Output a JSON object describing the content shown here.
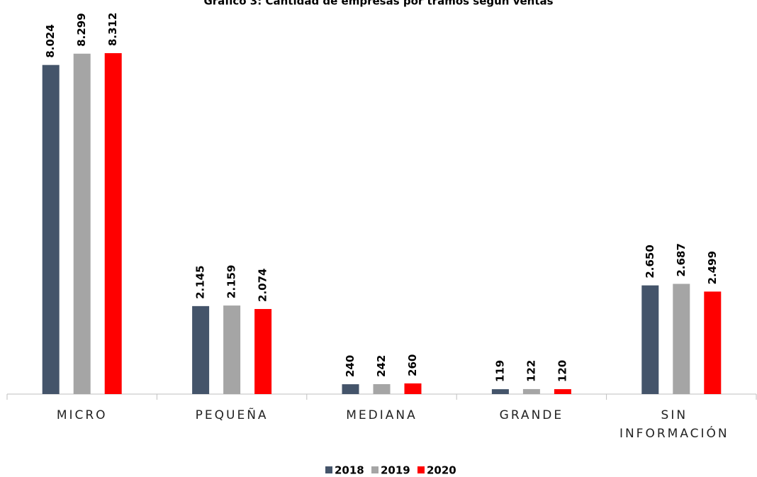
{
  "chart_data": {
    "type": "bar",
    "title": "Gráfico 3: Cantidad de empresas por tramos según ventas",
    "categories": [
      "MICRO",
      "PEQUEÑA",
      "MEDIANA",
      "GRANDE",
      "SIN INFORMACIÓN"
    ],
    "series": [
      {
        "name": "2018",
        "color": "#44546a",
        "values": [
          8024,
          2145,
          240,
          119,
          2650
        ],
        "value_labels": [
          "8.024",
          "2.145",
          "240",
          "119",
          "2.650"
        ]
      },
      {
        "name": "2019",
        "color": "#a5a5a5",
        "values": [
          8299,
          2159,
          242,
          122,
          2687
        ],
        "value_labels": [
          "8.299",
          "2.159",
          "242",
          "122",
          "2.687"
        ]
      },
      {
        "name": "2020",
        "color": "#ff0000",
        "values": [
          8312,
          2074,
          260,
          120,
          2499
        ],
        "value_labels": [
          "8.312",
          "2.074",
          "260",
          "120",
          "2.499"
        ]
      }
    ],
    "legend": "bottom"
  }
}
